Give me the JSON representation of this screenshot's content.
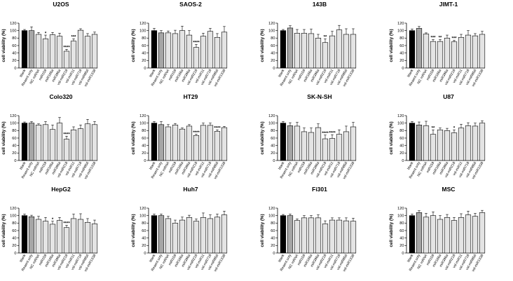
{
  "figure": {
    "colors": {
      "blank": "#000000",
      "reagent": "#a6a6a6",
      "other": "#e4e4e4",
      "stroke": "#000000"
    }
  },
  "chart_data": [
    {
      "type": "bar",
      "title": "U2OS",
      "xlabel": "",
      "ylabel": "cell viability (%)",
      "ylim": [
        0,
        120
      ],
      "yticks": [
        0,
        20,
        40,
        60,
        80,
        100,
        120
      ],
      "categories": [
        "blank",
        "Reaent only",
        "NC mRNA",
        "miR159",
        "miR166a",
        "miR396a",
        "vsl-miR218",
        "vsl-miR11",
        "vsl-miR718",
        "vsl-miR856",
        "vsl-miR1338"
      ],
      "values": [
        100,
        100,
        90,
        78,
        89,
        85,
        45,
        72,
        101,
        85,
        90
      ],
      "errors": [
        3,
        10,
        5,
        10,
        6,
        8,
        5,
        6,
        4,
        7,
        6
      ],
      "annotations": [
        "",
        "",
        "",
        "*",
        "",
        "",
        "****",
        "***",
        "",
        "",
        ""
      ]
    },
    {
      "type": "bar",
      "title": "SAOS-2",
      "xlabel": "",
      "ylabel": "cell viability (%)",
      "ylim": [
        0,
        120
      ],
      "yticks": [
        0,
        20,
        40,
        60,
        80,
        100,
        120
      ],
      "categories": [
        "blank",
        "Reaent only",
        "NC mRNA",
        "miR159",
        "miR166a",
        "miR396a",
        "vsl-miR218",
        "vsl-miR11",
        "vsl-miR718",
        "vsl-miR856",
        "vsl-miR1338"
      ],
      "values": [
        100,
        94,
        94,
        92,
        100,
        88,
        55,
        85,
        98,
        82,
        96
      ],
      "errors": [
        6,
        6,
        5,
        9,
        12,
        12,
        8,
        8,
        8,
        10,
        15
      ],
      "annotations": [
        "",
        "",
        "",
        "",
        "",
        "",
        "****",
        "",
        "",
        "",
        ""
      ]
    },
    {
      "type": "bar",
      "title": "143B",
      "xlabel": "",
      "ylabel": "cell viability (%)",
      "ylim": [
        0,
        120
      ],
      "yticks": [
        0,
        20,
        40,
        60,
        80,
        100,
        120
      ],
      "categories": [
        "blank",
        "Reaent only",
        "NC mRNA",
        "miR159",
        "miR166a",
        "miR396a",
        "vsl-miR218",
        "vsl-miR11",
        "vsl-miR718",
        "vsl-miR856",
        "vsl-miR1338"
      ],
      "values": [
        100,
        107,
        93,
        93,
        92,
        80,
        68,
        86,
        102,
        90,
        90
      ],
      "errors": [
        3,
        6,
        10,
        10,
        12,
        10,
        10,
        12,
        12,
        15,
        15
      ],
      "annotations": [
        "",
        "",
        "",
        "",
        "",
        "",
        "**",
        "",
        "",
        "",
        ""
      ]
    },
    {
      "type": "bar",
      "title": "JIMT-1",
      "xlabel": "",
      "ylabel": "cell viability (%)",
      "ylim": [
        0,
        120
      ],
      "yticks": [
        0,
        20,
        40,
        60,
        80,
        100,
        120
      ],
      "categories": [
        "blank",
        "Reaent only",
        "NC mRNA",
        "miR159",
        "miR166a",
        "miR396a",
        "vsl-miR218",
        "vsl-miR11",
        "vsl-miR718",
        "vsl-miR856",
        "vsl-miR1338"
      ],
      "values": [
        100,
        106,
        91,
        71,
        71,
        80,
        70,
        82,
        88,
        86,
        90
      ],
      "errors": [
        4,
        5,
        3,
        5,
        5,
        8,
        4,
        8,
        12,
        6,
        8
      ],
      "annotations": [
        "",
        "",
        "",
        "***",
        "**",
        "",
        "***",
        "",
        "",
        "",
        ""
      ]
    },
    {
      "type": "bar",
      "title": "Colo320",
      "xlabel": "",
      "ylabel": "cell viability (%)",
      "ylim": [
        0,
        120
      ],
      "yticks": [
        0,
        20,
        40,
        60,
        80,
        100,
        120
      ],
      "categories": [
        "blank",
        "Reaent only",
        "NC mRNA",
        "miR159",
        "miR166a",
        "miR396a",
        "vsl-miR218",
        "vsl-miR11",
        "vsl-miR718",
        "vsl-miR856",
        "vsl-miR1338"
      ],
      "values": [
        100,
        100,
        95,
        96,
        83,
        100,
        57,
        82,
        85,
        98,
        96
      ],
      "errors": [
        3,
        4,
        3,
        8,
        12,
        15,
        8,
        8,
        10,
        12,
        8
      ],
      "annotations": [
        "",
        "",
        "",
        "",
        "",
        "",
        "****",
        "",
        "",
        "",
        ""
      ]
    },
    {
      "type": "bar",
      "title": "HT29",
      "xlabel": "",
      "ylabel": "cell viability (%)",
      "ylim": [
        0,
        120
      ],
      "yticks": [
        0,
        20,
        40,
        60,
        80,
        100,
        120
      ],
      "categories": [
        "blank",
        "Reaent only",
        "NC mRNA",
        "miR159",
        "miR166a",
        "miR396a",
        "vsl-miR218",
        "vsl-miR11",
        "vsl-miR718",
        "vsl-miR856",
        "vsl-miR1338"
      ],
      "values": [
        100,
        96,
        90,
        95,
        84,
        92,
        67,
        94,
        94,
        78,
        88
      ],
      "errors": [
        4,
        8,
        6,
        4,
        3,
        4,
        3,
        6,
        6,
        4,
        3
      ],
      "annotations": [
        "",
        "",
        "",
        "",
        "",
        "",
        "****",
        "",
        "",
        "****",
        ""
      ]
    },
    {
      "type": "bar",
      "title": "SK-N-SH",
      "xlabel": "",
      "ylabel": "cell viability (%)",
      "ylim": [
        0,
        120
      ],
      "yticks": [
        0,
        20,
        40,
        60,
        80,
        100,
        120
      ],
      "categories": [
        "blank",
        "Reaent only",
        "NC mRNA",
        "miR159",
        "miR166a",
        "miR396a",
        "vsl-miR218",
        "vsl-miR11",
        "vsl-miR718",
        "vsl-miR856",
        "vsl-miR1338"
      ],
      "values": [
        100,
        93,
        92,
        77,
        75,
        88,
        58,
        59,
        70,
        77,
        90
      ],
      "errors": [
        4,
        8,
        10,
        10,
        12,
        10,
        10,
        10,
        12,
        15,
        12
      ],
      "annotations": [
        "",
        "",
        "",
        "",
        "",
        "",
        "****",
        "****",
        "",
        "",
        ""
      ]
    },
    {
      "type": "bar",
      "title": "U87",
      "xlabel": "",
      "ylabel": "cell viability (%)",
      "ylim": [
        0,
        120
      ],
      "yticks": [
        0,
        20,
        40,
        60,
        80,
        100,
        120
      ],
      "categories": [
        "blank",
        "Reaent only",
        "NC mRNA",
        "miR159",
        "miR166a",
        "miR396a",
        "vsl-miR218",
        "vsl-miR11",
        "vsl-miR718",
        "vsl-miR856",
        "vsl-miR1338"
      ],
      "values": [
        100,
        95,
        93,
        70,
        82,
        80,
        74,
        87,
        93,
        92,
        100
      ],
      "errors": [
        4,
        8,
        12,
        12,
        5,
        6,
        8,
        10,
        8,
        8,
        6
      ],
      "annotations": [
        "",
        "",
        "",
        "**",
        "",
        "",
        "*",
        "",
        "",
        "",
        ""
      ]
    },
    {
      "type": "bar",
      "title": "HepG2",
      "xlabel": "",
      "ylabel": "cell viability (%)",
      "ylim": [
        0,
        120
      ],
      "yticks": [
        0,
        20,
        40,
        60,
        80,
        100,
        120
      ],
      "categories": [
        "blank",
        "Reaent only",
        "NC mRNA",
        "miR159",
        "miR166a",
        "miR396a",
        "vsl-miR218",
        "vsl-miR11",
        "vsl-miR718",
        "vsl-miR856",
        "vsl-miR1338"
      ],
      "values": [
        100,
        97,
        90,
        85,
        77,
        87,
        68,
        92,
        90,
        82,
        78
      ],
      "errors": [
        4,
        4,
        8,
        10,
        8,
        8,
        6,
        12,
        15,
        10,
        10
      ],
      "annotations": [
        "",
        "",
        "",
        "",
        "*",
        "",
        "****",
        "",
        "",
        "",
        ""
      ]
    },
    {
      "type": "bar",
      "title": "Huh7",
      "xlabel": "",
      "ylabel": "cell viability (%)",
      "ylim": [
        0,
        120
      ],
      "yticks": [
        0,
        20,
        40,
        60,
        80,
        100,
        120
      ],
      "categories": [
        "blank",
        "Reaent only",
        "NC mRNA",
        "miR159",
        "miR166a",
        "miR396a",
        "vsl-miR218",
        "vsl-miR11",
        "vsl-miR718",
        "vsl-miR856",
        "vsl-miR1338"
      ],
      "values": [
        100,
        100,
        92,
        80,
        88,
        95,
        85,
        95,
        92,
        96,
        102
      ],
      "errors": [
        4,
        4,
        6,
        8,
        8,
        6,
        6,
        12,
        10,
        8,
        10
      ],
      "annotations": [
        "",
        "",
        "",
        "",
        "",
        "",
        "",
        "",
        "",
        "",
        ""
      ]
    },
    {
      "type": "bar",
      "title": "Fi301",
      "xlabel": "",
      "ylabel": "cell viability (%)",
      "ylim": [
        0,
        120
      ],
      "yticks": [
        0,
        20,
        40,
        60,
        80,
        100,
        120
      ],
      "categories": [
        "blank",
        "Reaent only",
        "NC mRNA",
        "miR159",
        "miR166a",
        "miR396a",
        "vsl-miR218",
        "vsl-miR11",
        "vsl-miR718",
        "vsl-miR856",
        "vsl-miR1338"
      ],
      "values": [
        100,
        100,
        87,
        94,
        94,
        94,
        78,
        88,
        88,
        86,
        85
      ],
      "errors": [
        3,
        4,
        4,
        6,
        6,
        8,
        8,
        6,
        6,
        8,
        8
      ],
      "annotations": [
        "",
        "",
        "",
        "",
        "",
        "",
        "",
        "",
        "",
        "",
        ""
      ]
    },
    {
      "type": "bar",
      "title": "MSC",
      "xlabel": "",
      "ylabel": "cell viability (%)",
      "ylim": [
        0,
        120
      ],
      "yticks": [
        0,
        20,
        40,
        60,
        80,
        100,
        120
      ],
      "categories": [
        "blank",
        "Reaent only",
        "NC mRNA",
        "miR159",
        "miR166a",
        "miR396a",
        "vsl-miR218",
        "vsl-miR11",
        "vsl-miR718",
        "vsl-miR856",
        "vsl-miR1338"
      ],
      "values": [
        100,
        108,
        96,
        100,
        90,
        95,
        87,
        95,
        102,
        98,
        108
      ],
      "errors": [
        4,
        5,
        10,
        10,
        10,
        8,
        8,
        10,
        10,
        8,
        6
      ],
      "annotations": [
        "",
        "",
        "",
        "",
        "",
        "",
        "",
        "",
        "",
        "",
        ""
      ]
    }
  ]
}
